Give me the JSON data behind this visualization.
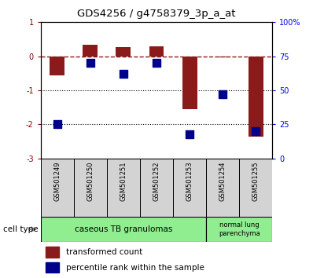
{
  "title": "GDS4256 / g4758379_3p_a_at",
  "samples": [
    "GSM501249",
    "GSM501250",
    "GSM501251",
    "GSM501252",
    "GSM501253",
    "GSM501254",
    "GSM501255"
  ],
  "transformed_count": [
    -0.55,
    0.35,
    0.28,
    0.3,
    -1.55,
    -0.03,
    -2.35
  ],
  "percentile_rank_pct": [
    25,
    70,
    62,
    70,
    18,
    47,
    20
  ],
  "ylim_left": [
    -3,
    1
  ],
  "ylim_right": [
    0,
    100
  ],
  "yticks_left": [
    1,
    0,
    -1,
    -2,
    -3
  ],
  "yticks_right": [
    100,
    75,
    50,
    25,
    0
  ],
  "ytick_labels_right": [
    "100%",
    "75",
    "50",
    "25",
    "0"
  ],
  "dotted_lines": [
    -1,
    -2
  ],
  "bar_color": "#8b1a1a",
  "dot_color": "#00008b",
  "cell_type_label": "cell type",
  "ct_group1_label": "caseous TB granulomas",
  "ct_group2_label": "normal lung\nparenchyma",
  "ct_color": "#90ee90",
  "sample_box_color": "#d3d3d3",
  "legend_bar_label": "transformed count",
  "legend_dot_label": "percentile rank within the sample",
  "background_color": "#ffffff"
}
